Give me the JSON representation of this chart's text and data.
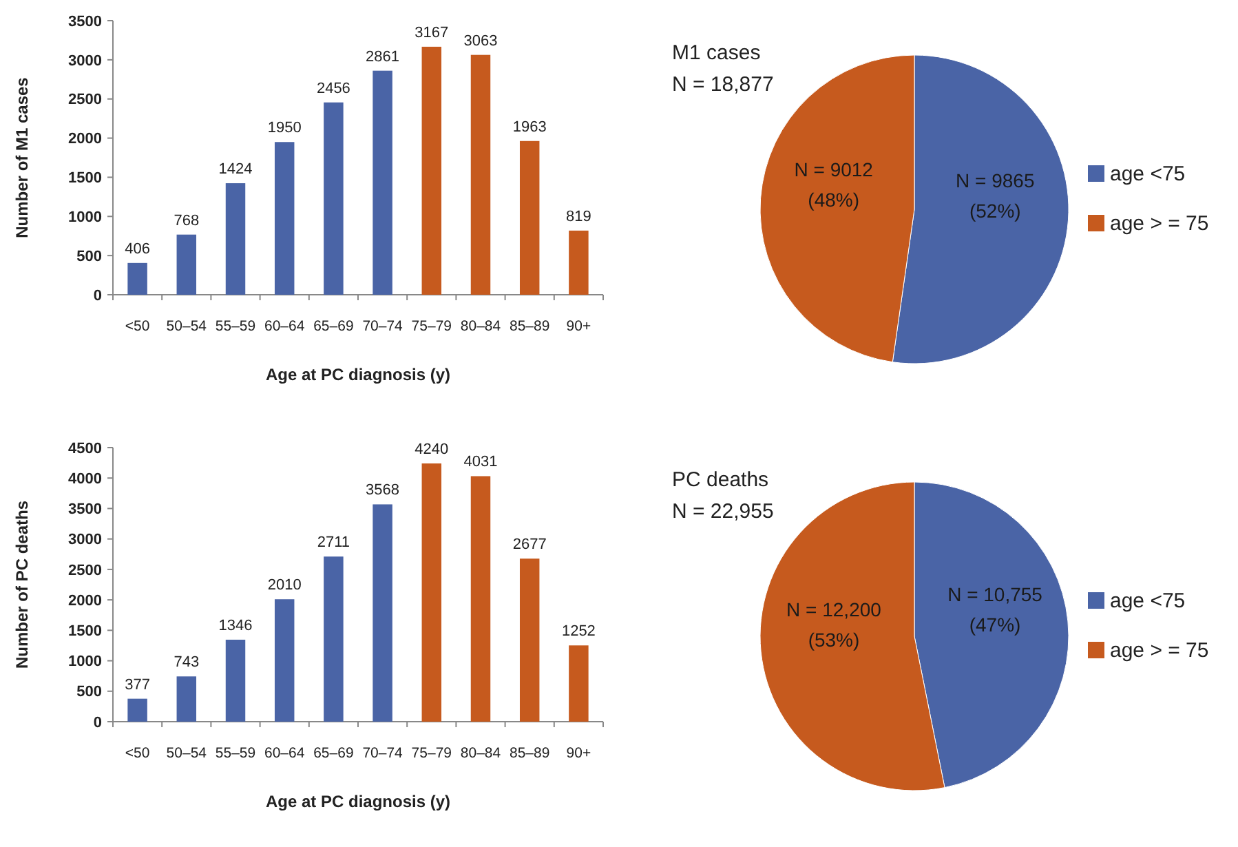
{
  "chart_data": [
    {
      "type": "bar",
      "xlabel": "Age at PC diagnosis (y)",
      "ylabel": "Number of M1 cases",
      "categories": [
        "<50",
        "50–54",
        "55–59",
        "60–64",
        "65–69",
        "70–74",
        "75–79",
        "80–84",
        "85–89",
        "90+"
      ],
      "values": [
        406,
        768,
        1424,
        1950,
        2456,
        2861,
        3167,
        3063,
        1963,
        819
      ],
      "colors": [
        "#4a64a6",
        "#4a64a6",
        "#4a64a6",
        "#4a64a6",
        "#4a64a6",
        "#4a64a6",
        "#c65a1e",
        "#c65a1e",
        "#c65a1e",
        "#c65a1e"
      ],
      "ylim": [
        0,
        3500
      ],
      "yticks": [
        0,
        500,
        1000,
        1500,
        2000,
        2500,
        3000,
        3500
      ],
      "data_labels": true
    },
    {
      "type": "pie",
      "title": "M1 cases",
      "subtitle": "N = 18,877",
      "categories": [
        "age <75",
        "age > = 75"
      ],
      "values": [
        9865,
        9012
      ],
      "colors": [
        "#4a64a6",
        "#c65a1e"
      ],
      "value_labels": [
        "N = 9865\n(52%)",
        "N = 9012\n(48%)"
      ],
      "legend": "right"
    },
    {
      "type": "bar",
      "xlabel": "Age at PC diagnosis (y)",
      "ylabel": "Number of PC deaths",
      "categories": [
        "<50",
        "50–54",
        "55–59",
        "60–64",
        "65–69",
        "70–74",
        "75–79",
        "80–84",
        "85–89",
        "90+"
      ],
      "values": [
        377,
        743,
        1346,
        2010,
        2711,
        3568,
        4240,
        4031,
        2677,
        1252
      ],
      "colors": [
        "#4a64a6",
        "#4a64a6",
        "#4a64a6",
        "#4a64a6",
        "#4a64a6",
        "#4a64a6",
        "#c65a1e",
        "#c65a1e",
        "#c65a1e",
        "#c65a1e"
      ],
      "ylim": [
        0,
        4500
      ],
      "yticks": [
        0,
        500,
        1000,
        1500,
        2000,
        2500,
        3000,
        3500,
        4000,
        4500
      ],
      "data_labels": true
    },
    {
      "type": "pie",
      "title": "PC deaths",
      "subtitle": "N = 22,955",
      "categories": [
        "age <75",
        "age > = 75"
      ],
      "values": [
        10755,
        12200
      ],
      "colors": [
        "#4a64a6",
        "#c65a1e"
      ],
      "value_labels": [
        "N = 10,755\n(47%)",
        "N = 12,200\n(53%)"
      ],
      "legend": "right"
    }
  ]
}
